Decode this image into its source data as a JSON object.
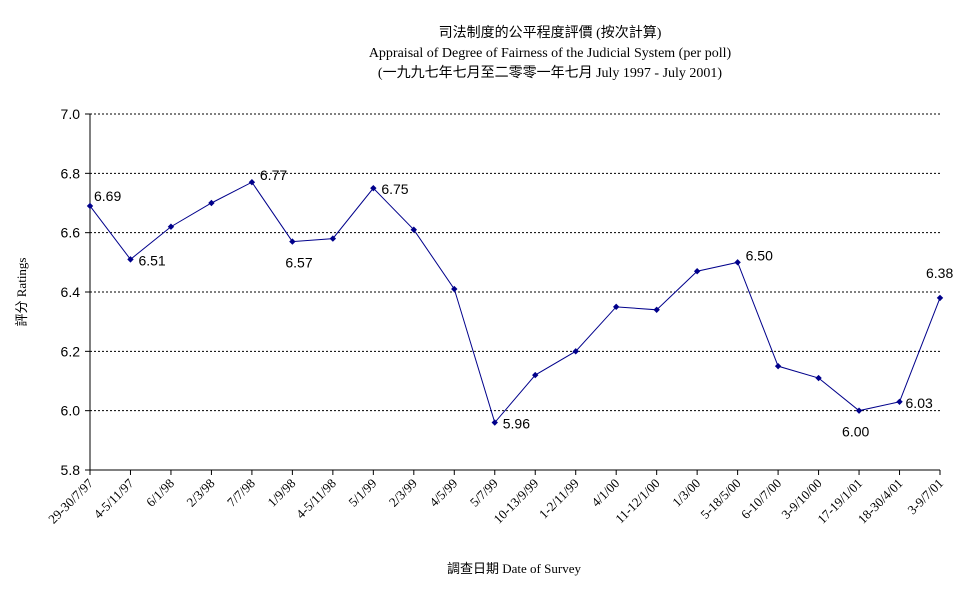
{
  "chart_data": {
    "type": "line",
    "title": "司法制度的公平程度評價 (按次計算)",
    "subtitle": "Appraisal of Degree of Fairness of the Judicial System (per poll)",
    "subtitle2": "(一九九七年七月至二零零一年七月 July 1997 - July 2001)",
    "xlabel": "調查日期 Date of Survey",
    "ylabel": "評分 Ratings",
    "ylim": [
      5.8,
      7.0
    ],
    "yticks": [
      "5.8",
      "6.0",
      "6.2",
      "6.4",
      "6.6",
      "6.8",
      "7.0"
    ],
    "grid": true,
    "line_color": "#00008B",
    "categories": [
      "29-30/7/97",
      "4-5/11/97",
      "6/1/98",
      "2/3/98",
      "7/7/98",
      "1/9/98",
      "4-5/11/98",
      "5/1/99",
      "2/3/99",
      "4/5/99",
      "5/7/99",
      "10-13/9/99",
      "1-2/11/99",
      "4/1/00",
      "11-12/1/00",
      "1/3/00",
      "5-18/5/00",
      "6-10/7/00",
      "3-9/10/00",
      "17-19/1/01",
      "18-30/4/01",
      "3-9/7/01"
    ],
    "values": [
      6.69,
      6.51,
      6.62,
      6.7,
      6.77,
      6.57,
      6.58,
      6.75,
      6.61,
      6.41,
      5.96,
      6.12,
      6.2,
      6.35,
      6.34,
      6.47,
      6.5,
      6.15,
      6.11,
      6.0,
      6.03,
      6.38
    ],
    "data_labels": [
      {
        "index": 0,
        "text": "6.69"
      },
      {
        "index": 1,
        "text": "6.51"
      },
      {
        "index": 4,
        "text": "6.77"
      },
      {
        "index": 5,
        "text": "6.57"
      },
      {
        "index": 7,
        "text": "6.75"
      },
      {
        "index": 10,
        "text": "5.96"
      },
      {
        "index": 16,
        "text": "6.50"
      },
      {
        "index": 19,
        "text": "6.00"
      },
      {
        "index": 20,
        "text": "6.03"
      },
      {
        "index": 21,
        "text": "6.38"
      }
    ]
  }
}
